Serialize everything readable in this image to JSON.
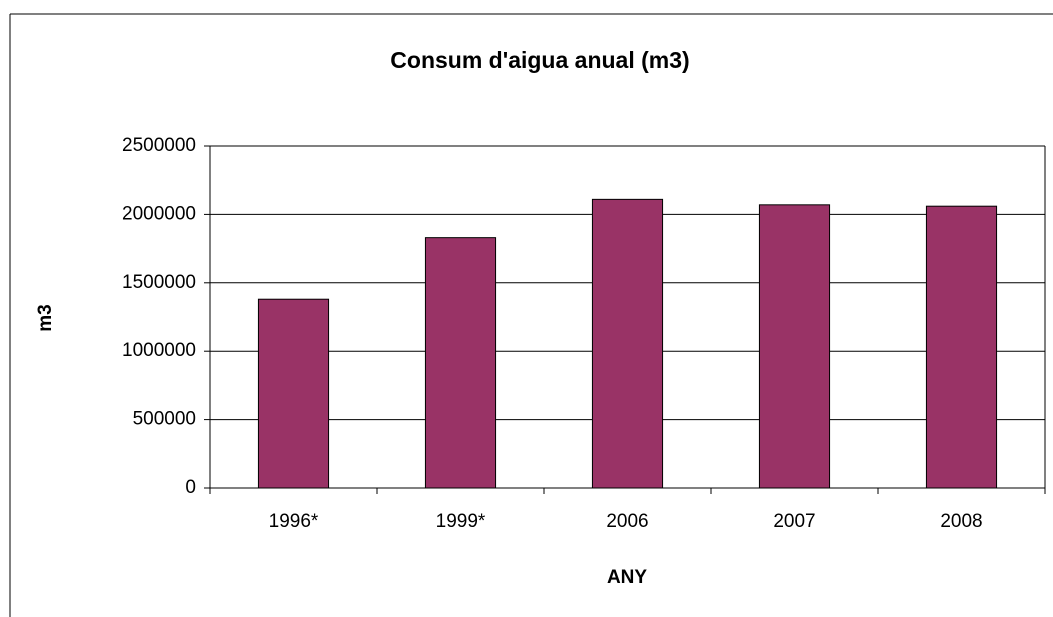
{
  "chart_data": {
    "type": "bar",
    "title": "Consum d'aigua anual (m3)",
    "x_label": "ANY",
    "y_label": "m3",
    "categories": [
      "1996*",
      "1999*",
      "2006",
      "2007",
      "2008"
    ],
    "values": [
      1380000,
      1830000,
      2110000,
      2070000,
      2060000
    ],
    "color": "#993366",
    "ylim": [
      0,
      2500000
    ],
    "yticks": [
      0,
      500000,
      1000000,
      1500000,
      2000000,
      2500000
    ],
    "grid": true
  }
}
